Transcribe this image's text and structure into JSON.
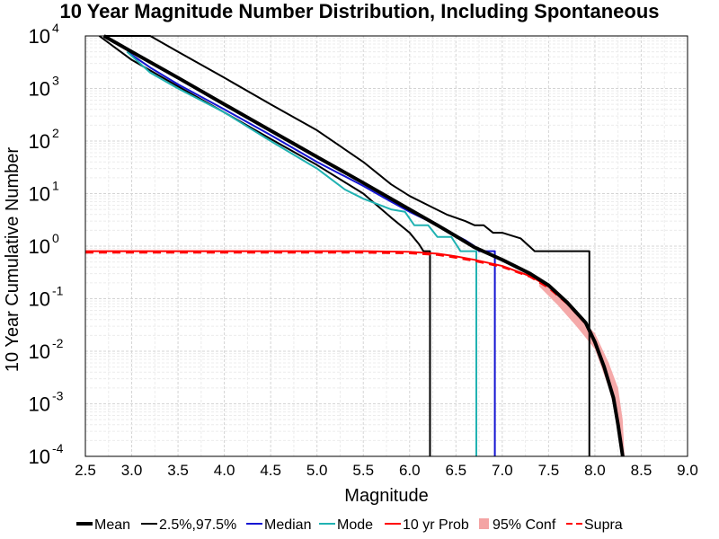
{
  "chart_data": {
    "type": "line",
    "title": "10 Year Magnitude Number Distribution, Including Spontaneous",
    "xlabel": "Magnitude",
    "ylabel": "10 Year Cumulative Number",
    "xlim": [
      2.5,
      9.0
    ],
    "ylim": [
      0.0001,
      10000
    ],
    "yscale": "log",
    "grid": true,
    "x_ticks": [
      "2.5",
      "3.0",
      "3.5",
      "4.0",
      "4.5",
      "5.0",
      "5.5",
      "6.0",
      "6.5",
      "7.0",
      "7.5",
      "8.0",
      "8.5",
      "9.0"
    ],
    "y_ticks": [
      {
        "value": 0.0001,
        "base": "10",
        "exp": "-4"
      },
      {
        "value": 0.001,
        "base": "10",
        "exp": "-3"
      },
      {
        "value": 0.01,
        "base": "10",
        "exp": "-2"
      },
      {
        "value": 0.1,
        "base": "10",
        "exp": "-1"
      },
      {
        "value": 1,
        "base": "10",
        "exp": "0"
      },
      {
        "value": 10,
        "base": "10",
        "exp": "1"
      },
      {
        "value": 100,
        "base": "10",
        "exp": "2"
      },
      {
        "value": 1000,
        "base": "10",
        "exp": "3"
      },
      {
        "value": 10000,
        "base": "10",
        "exp": "4"
      }
    ],
    "legend_placement": "bottom",
    "series": [
      {
        "name": "Mean",
        "color": "#000000",
        "style": "thick",
        "x": [
          2.7,
          3.0,
          3.5,
          4.0,
          4.5,
          5.0,
          5.5,
          6.0,
          6.3,
          6.5,
          6.7,
          7.0,
          7.3,
          7.5,
          7.7,
          7.9,
          8.0,
          8.1,
          8.2,
          8.25,
          8.3
        ],
        "y": [
          10000,
          5000,
          1600,
          500,
          158,
          50,
          16,
          5,
          2.5,
          1.55,
          0.95,
          0.55,
          0.3,
          0.18,
          0.085,
          0.035,
          0.015,
          0.005,
          0.0013,
          0.0004,
          0.0001
        ]
      },
      {
        "name": "2.5%,97.5%",
        "color": "#000000",
        "style": "thin",
        "x": [
          2.65,
          3.0,
          3.5,
          4.0,
          4.5,
          5.0,
          5.5,
          5.8,
          6.0,
          6.1,
          6.15,
          6.2,
          6.22,
          6.22
        ],
        "y": [
          10000,
          3500,
          1100,
          350,
          110,
          35,
          10,
          3.5,
          1.8,
          1.1,
          0.8,
          0.8,
          0.8,
          0.0001
        ]
      },
      {
        "name": "2.5%,97.5%",
        "color": "#000000",
        "style": "thin",
        "x": [
          2.7,
          3.2,
          3.5,
          4.0,
          4.5,
          5.0,
          5.5,
          5.8,
          6.0,
          6.2,
          6.4,
          6.6,
          6.7,
          6.8,
          6.9,
          7.0,
          7.2,
          7.35,
          7.4,
          7.94,
          7.94
        ],
        "y": [
          10000,
          10000,
          5000,
          1600,
          500,
          160,
          40,
          15,
          9,
          6,
          4,
          3,
          2.5,
          2.5,
          1.8,
          1.8,
          1.4,
          0.8,
          0.8,
          0.8,
          0.0001
        ]
      },
      {
        "name": "Median",
        "color": "#1414d2",
        "style": "normal",
        "x": [
          2.95,
          3.2,
          3.5,
          4.0,
          4.5,
          5.0,
          5.5,
          5.8,
          6.0,
          6.3,
          6.5,
          6.6,
          6.7,
          6.75,
          6.75,
          6.9,
          6.92,
          6.92
        ],
        "y": [
          5000,
          2500,
          1200,
          400,
          130,
          40,
          14,
          7,
          4.5,
          2.5,
          1.6,
          1.3,
          1.0,
          0.8,
          0.8,
          0.8,
          0.8,
          0.0001
        ]
      },
      {
        "name": "Mode",
        "color": "#20b2b2",
        "style": "normal",
        "x": [
          2.95,
          3.2,
          3.5,
          4.0,
          4.5,
          5.0,
          5.3,
          5.5,
          5.8,
          5.95,
          6.05,
          6.1,
          6.2,
          6.3,
          6.45,
          6.55,
          6.7,
          6.72,
          6.72
        ],
        "y": [
          5000,
          2000,
          1000,
          350,
          100,
          30,
          12,
          8,
          5,
          4.5,
          2.5,
          2.5,
          2.5,
          1.5,
          1.5,
          0.8,
          0.8,
          0.8,
          0.0001
        ]
      },
      {
        "name": "10 yr Prob",
        "color": "#ff0000",
        "style": "normal",
        "x": [
          2.5,
          3.0,
          4.0,
          5.0,
          5.5,
          6.0,
          6.3,
          6.5,
          6.7,
          7.0,
          7.3,
          7.5,
          7.7,
          7.9,
          8.0,
          8.1,
          8.2,
          8.25,
          8.3
        ],
        "y": [
          0.8,
          0.8,
          0.8,
          0.8,
          0.8,
          0.78,
          0.72,
          0.64,
          0.55,
          0.42,
          0.27,
          0.17,
          0.085,
          0.035,
          0.015,
          0.005,
          0.0013,
          0.0004,
          0.0001
        ]
      },
      {
        "name": "95% Conf",
        "color": "#f4a4a4",
        "style": "band",
        "x": [
          7.4,
          7.6,
          7.8,
          8.0,
          8.15,
          8.25,
          8.3,
          8.32
        ],
        "lower": [
          0.17,
          0.075,
          0.03,
          0.011,
          0.002,
          0.0004,
          0.0001,
          0.0001
        ],
        "upper": [
          0.26,
          0.12,
          0.05,
          0.022,
          0.006,
          0.002,
          0.0005,
          0.0001
        ]
      },
      {
        "name": "Supra",
        "color": "#ff0000",
        "style": "dashed",
        "x": [
          2.5,
          3.0,
          4.0,
          5.0,
          5.5,
          6.0,
          6.3,
          6.5,
          6.7,
          7.0,
          7.3,
          7.5,
          7.7,
          7.9,
          8.0,
          8.1,
          8.2,
          8.25,
          8.3
        ],
        "y": [
          0.75,
          0.75,
          0.75,
          0.75,
          0.75,
          0.73,
          0.68,
          0.6,
          0.52,
          0.4,
          0.26,
          0.16,
          0.08,
          0.033,
          0.014,
          0.0048,
          0.0012,
          0.0004,
          0.0001
        ]
      }
    ],
    "legend": [
      {
        "label": "Mean",
        "color": "#000000",
        "kind": "thick"
      },
      {
        "label": "2.5%,97.5%",
        "color": "#000000",
        "kind": "thin"
      },
      {
        "label": "Median",
        "color": "#1414d2",
        "kind": "normal"
      },
      {
        "label": "Mode",
        "color": "#20b2b2",
        "kind": "normal"
      },
      {
        "label": "10 yr Prob",
        "color": "#ff0000",
        "kind": "normal"
      },
      {
        "label": "95% Conf",
        "color": "#f4a4a4",
        "kind": "band"
      },
      {
        "label": "Supra",
        "color": "#ff0000",
        "kind": "dashed"
      }
    ]
  }
}
